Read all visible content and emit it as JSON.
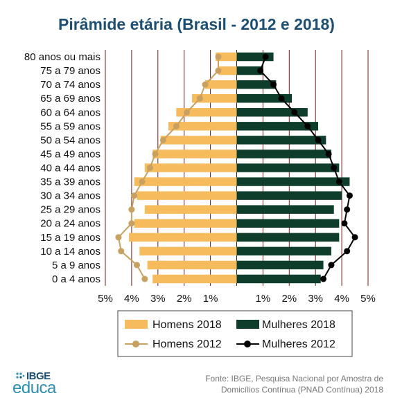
{
  "chart_data": {
    "type": "bar",
    "orientation": "horizontal-population-pyramid",
    "title": "Pirâmide etária (Brasil - 2012 e 2018)",
    "categories": [
      "80 anos ou mais",
      "75 a 79 anos",
      "70 a 74 anos",
      "65 a 69 anos",
      "60 a 64 anos",
      "55 a 59 anos",
      "50 a 54 anos",
      "45 a 49 anos",
      "40 a 44 anos",
      "35 a 39 anos",
      "30 a 34 anos",
      "25 a 29 anos",
      "20 a 24 anos",
      "15 a 19 anos",
      "10 a 14 anos",
      "5 a 9 anos",
      "0 a 4 anos"
    ],
    "x_tick_labels": [
      "5%",
      "4%",
      "3%",
      "2%",
      "1%",
      "",
      "1%",
      "2%",
      "3%",
      "4%",
      "5%"
    ],
    "xlim": [
      -5,
      5
    ],
    "grid": true,
    "legend_position": "bottom",
    "series": [
      {
        "name": "Homens 2018",
        "kind": "bar",
        "side": "left",
        "color": "#f6bb5c",
        "values": [
          0.8,
          0.7,
          1.2,
          1.7,
          2.3,
          2.6,
          2.9,
          3.2,
          3.5,
          3.9,
          3.8,
          3.5,
          3.9,
          4.1,
          3.7,
          3.4,
          3.2
        ]
      },
      {
        "name": "Mulheres 2018",
        "kind": "bar",
        "side": "right",
        "color": "#0f3d2b",
        "values": [
          1.4,
          1.0,
          1.5,
          2.1,
          2.7,
          3.1,
          3.4,
          3.6,
          3.9,
          4.3,
          4.0,
          3.7,
          3.9,
          3.9,
          3.6,
          3.3,
          3.2
        ]
      },
      {
        "name": "Homens 2012",
        "kind": "line",
        "side": "left",
        "color": "#c8a060",
        "values": [
          0.7,
          0.7,
          1.2,
          1.4,
          1.9,
          2.3,
          2.8,
          3.1,
          3.3,
          3.6,
          3.9,
          4.0,
          4.0,
          4.5,
          4.4,
          3.8,
          3.5
        ]
      },
      {
        "name": "Mulheres 2012",
        "kind": "line",
        "side": "right",
        "color": "#000000",
        "values": [
          1.1,
          0.9,
          1.4,
          1.7,
          2.2,
          2.7,
          3.1,
          3.5,
          3.7,
          3.9,
          4.3,
          4.2,
          4.1,
          4.5,
          4.2,
          3.6,
          3.3
        ]
      }
    ]
  },
  "legend": {
    "homens_2018": "Homens 2018",
    "mulheres_2018": "Mulheres 2018",
    "homens_2012": "Homens 2012",
    "mulheres_2012": "Mulheres 2012"
  },
  "footer": {
    "logo_ibge": "IBGE",
    "logo_educa": "educa",
    "source_line1": "Fonte: IBGE, Pesquisa Nacional por Amostra de",
    "source_line2": "Domicílios Contínua (PNAD Contínua) 2018"
  },
  "colors": {
    "title": "#1d4f73",
    "men_bar": "#f6bb5c",
    "women_bar": "#0f3d2b",
    "men_line": "#c8a060",
    "women_line": "#000000",
    "grid": "#7a1a1a"
  }
}
